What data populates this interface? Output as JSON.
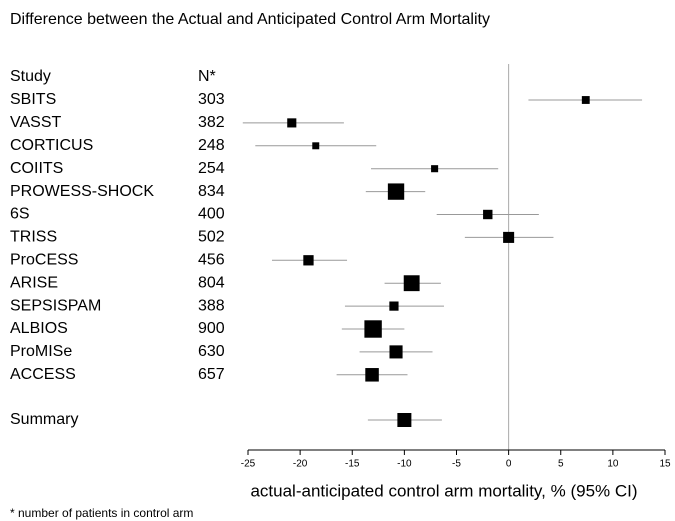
{
  "chart_data": {
    "type": "forest",
    "title": "Difference between the Actual and Anticipated Control Arm Mortality",
    "xlabel": "actual-anticipated control arm mortality, % (95% CI)",
    "footnote": "* number of patients in control arm",
    "columns": [
      "Study",
      "N*"
    ],
    "categories": [
      "SBITS",
      "VASST",
      "CORTICUS",
      "COIITS",
      "PROWESS-SHOCK",
      "6S",
      "TRISS",
      "ProCESS",
      "ARISE",
      "SEPSISPAM",
      "ALBIOS",
      "ProMISe",
      "ACCESS"
    ],
    "n": [
      303,
      382,
      248,
      254,
      834,
      400,
      502,
      456,
      804,
      388,
      900,
      630,
      657
    ],
    "values": [
      7.4,
      -20.8,
      -18.5,
      -7.1,
      -10.8,
      -2.0,
      0.0,
      -19.2,
      -9.3,
      -11.0,
      -13.0,
      -10.8,
      -13.1
    ],
    "lower": [
      1.9,
      -25.5,
      -24.3,
      -13.2,
      -13.7,
      -6.9,
      -4.2,
      -22.7,
      -11.9,
      -15.7,
      -16.0,
      -14.3,
      -16.5
    ],
    "upper": [
      12.8,
      -15.8,
      -12.7,
      -1.0,
      -8.0,
      2.9,
      4.3,
      -15.5,
      -6.5,
      -6.2,
      -10.0,
      -7.3,
      -9.7
    ],
    "summary": {
      "label": "Summary",
      "value": -10.0,
      "lower": -13.5,
      "upper": -6.4
    },
    "xlim": [
      -25,
      15
    ],
    "xticks": [
      -25,
      -20,
      -15,
      -10,
      -5,
      0,
      5,
      10,
      15
    ],
    "color": "#000000",
    "ci_color": "#999999"
  }
}
